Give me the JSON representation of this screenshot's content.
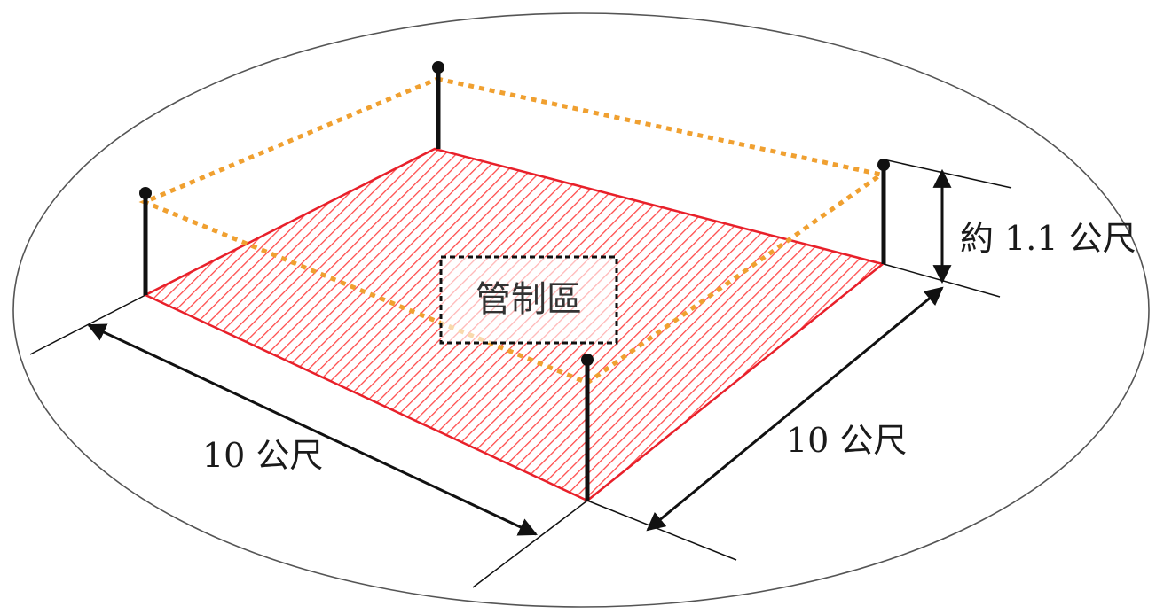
{
  "diagram": {
    "zone_label": "管制區",
    "width_label": "10 公尺",
    "depth_label": "10 公尺",
    "height_label": "約 1.1 公尺"
  },
  "colors": {
    "zone_fill": "#ff5a5a",
    "zone_border": "#e8202a",
    "rope": "#f0a030",
    "post": "#111111",
    "ellipse": "#555555"
  }
}
